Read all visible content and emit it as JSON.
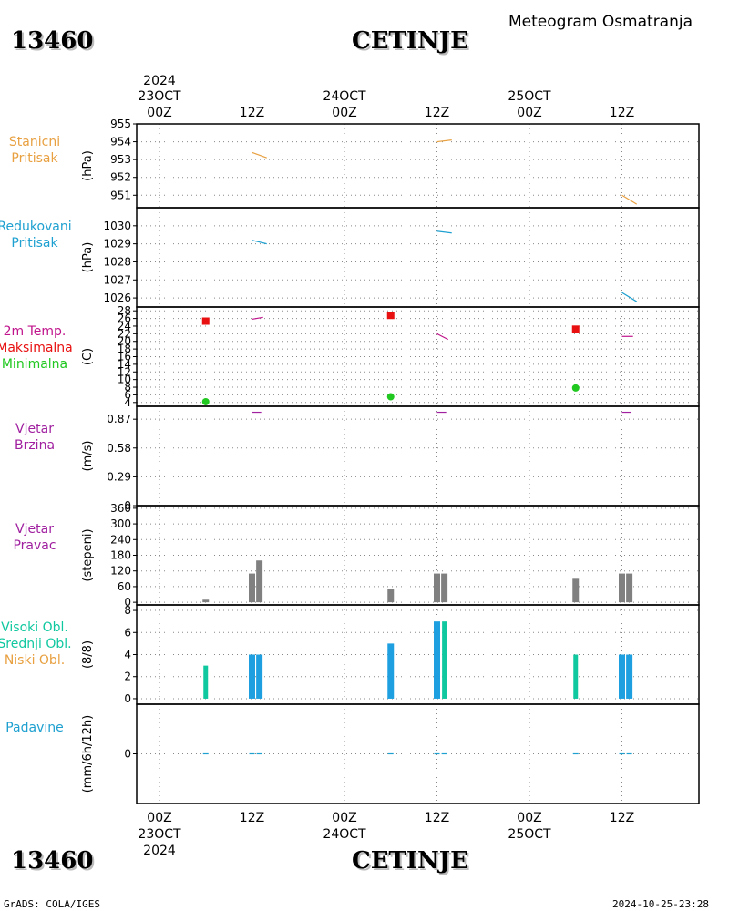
{
  "header": {
    "station_id": "13460",
    "station_name": "CETINJE",
    "product_title": "Meteogram Osmatranja"
  },
  "time_axis": {
    "top_year": "2024",
    "bottom_year": "2024",
    "hour_ticks": [
      "00Z",
      "12Z",
      "00Z",
      "12Z",
      "00Z",
      "12Z"
    ],
    "date_labels": [
      "23OCT",
      "24OCT",
      "25OCT"
    ]
  },
  "footer": {
    "credit": "GrADS: COLA/IGES",
    "timestamp": "2024-10-25-23:28"
  },
  "colors": {
    "station_pressure": "#e8a040",
    "reduced_pressure": "#1ea0d0",
    "temperature": "#c0148c",
    "tmax": "#e81010",
    "tmin": "#20c820",
    "wind": "#a020a0",
    "wind_dir_bar": "#808080",
    "high_cloud": "#10c8a0",
    "mid_cloud": "#1ea0e0",
    "low_cloud": "#e8a040",
    "precip": "#1ea0d0"
  },
  "chart_data": [
    {
      "id": "station_pressure",
      "type": "line",
      "label_lines": [
        "Stanicni",
        "Pritisak"
      ],
      "ylabel": "(hPa)",
      "ylim": [
        950.3,
        955
      ],
      "yticks": [
        955,
        954,
        953,
        952,
        951
      ],
      "series": [
        {
          "x": [
            0.5,
            0.58
          ],
          "y": [
            953.4,
            953.1
          ]
        },
        {
          "x": [
            1.5,
            1.58
          ],
          "y": [
            954.0,
            954.1
          ]
        },
        {
          "x": [
            2.5,
            2.58
          ],
          "y": [
            951.0,
            950.5
          ]
        }
      ]
    },
    {
      "id": "reduced_pressure",
      "type": "line",
      "label_lines": [
        "Redukovani",
        "Pritisak"
      ],
      "ylabel": "(hPa)",
      "ylim": [
        1025.5,
        1031
      ],
      "yticks": [
        1030,
        1029,
        1028,
        1027,
        1026
      ],
      "series": [
        {
          "x": [
            0.5,
            0.58
          ],
          "y": [
            1029.2,
            1029.0
          ]
        },
        {
          "x": [
            1.5,
            1.58
          ],
          "y": [
            1029.7,
            1029.6
          ]
        },
        {
          "x": [
            2.5,
            2.58
          ],
          "y": [
            1026.3,
            1025.8
          ]
        }
      ]
    },
    {
      "id": "temperature",
      "type": "scatter",
      "label_lines": [
        "2m Temp.",
        "Maksimalna",
        "Minimalna"
      ],
      "ylabel": "(C)",
      "ylim": [
        3,
        29
      ],
      "yticks": [
        4,
        6,
        8,
        10,
        12,
        14,
        16,
        18,
        20,
        22,
        24,
        26,
        28
      ],
      "temp_series": [
        {
          "x": [
            0.5,
            0.56
          ],
          "y": [
            25.8,
            26.3
          ]
        },
        {
          "x": [
            1.5,
            1.56
          ],
          "y": [
            22.0,
            20.5
          ]
        },
        {
          "x": [
            2.5,
            2.56
          ],
          "y": [
            21.3,
            21.3
          ]
        }
      ],
      "tmax": {
        "x": [
          0.25,
          1.25,
          2.25
        ],
        "y": [
          25.3,
          26.8,
          23.2
        ]
      },
      "tmin": {
        "x": [
          0.25,
          1.25,
          2.25
        ],
        "y": [
          4.2,
          5.5,
          7.8
        ]
      }
    },
    {
      "id": "wind_speed",
      "type": "line",
      "label_lines": [
        "Vjetar",
        "Brzina"
      ],
      "ylabel": "(m/s)",
      "ylim": [
        0,
        1.0
      ],
      "yticks": [
        0.87,
        0.58,
        0.29,
        0
      ],
      "series": [
        {
          "x": [
            0.5,
            0.55
          ],
          "y": [
            0.94,
            0.94
          ]
        },
        {
          "x": [
            1.5,
            1.55
          ],
          "y": [
            0.94,
            0.94
          ]
        },
        {
          "x": [
            2.5,
            2.55
          ],
          "y": [
            0.94,
            0.94
          ]
        }
      ]
    },
    {
      "id": "wind_direction",
      "type": "bar",
      "label_lines": [
        "Vjetar",
        "Pravac"
      ],
      "ylabel": "(stepeni)",
      "ylim": [
        -10,
        370
      ],
      "yticks": [
        360,
        300,
        240,
        180,
        120,
        60,
        0
      ],
      "bars": {
        "x": [
          0.25,
          0.5,
          0.54,
          1.25,
          1.5,
          1.54,
          2.25,
          2.5,
          2.54
        ],
        "values": [
          10,
          110,
          160,
          50,
          110,
          110,
          90,
          110,
          110
        ]
      }
    },
    {
      "id": "cloud_cover",
      "type": "bar",
      "label_lines": [
        "Visoki Obl.",
        "Srednji Obl.",
        "Niski Obl."
      ],
      "ylabel": "(8/8)",
      "ylim": [
        -0.5,
        8.5
      ],
      "yticks": [
        8,
        6,
        4,
        2,
        0
      ],
      "high": {
        "x": [
          0.25,
          1.54,
          2.25
        ],
        "values": [
          3,
          7,
          4
        ]
      },
      "mid": {
        "x": [
          0.5,
          0.54,
          1.25,
          1.5,
          2.5,
          2.54
        ],
        "values": [
          4,
          4,
          5,
          7,
          4,
          4
        ]
      }
    },
    {
      "id": "precipitation",
      "type": "bar",
      "label_lines": [
        "Padavine"
      ],
      "ylabel": "(mm/6h/12h)",
      "ylim": [
        -2,
        2
      ],
      "yticks": [
        0
      ],
      "bars": {
        "x": [
          0.25,
          0.5,
          0.54,
          1.25,
          1.5,
          1.54,
          2.25,
          2.5,
          2.54
        ],
        "values": [
          0,
          0,
          0,
          0,
          0,
          0,
          0,
          0,
          0
        ]
      }
    }
  ]
}
